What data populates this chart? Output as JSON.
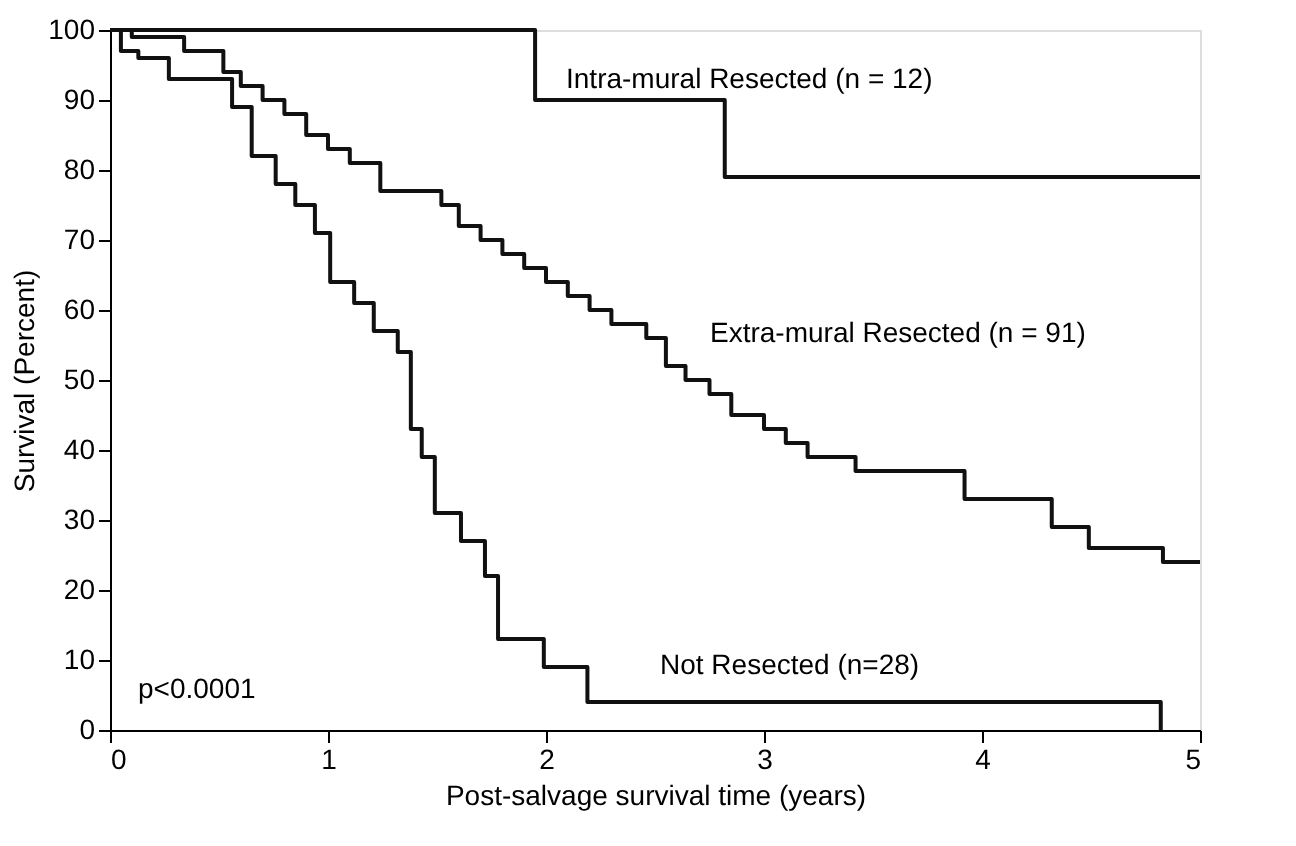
{
  "chart_data": {
    "type": "step",
    "xlabel": "Post-salvage survival time (years)",
    "ylabel": "Survival (Percent)",
    "xlim": [
      0,
      5
    ],
    "xticks": [
      0,
      1,
      2,
      3,
      4,
      5
    ],
    "ylim": [
      0,
      100
    ],
    "yticks": [
      0,
      10,
      20,
      30,
      40,
      50,
      60,
      70,
      80,
      90,
      100
    ],
    "grid": false,
    "marker": "none",
    "line_style": "solid",
    "series": [
      {
        "name": "Intra-mural Resected (n = 12)",
        "color": "#111111",
        "x": [
          0,
          1.95,
          2.82,
          5
        ],
        "values": [
          100,
          90,
          79,
          79
        ]
      },
      {
        "name": "Extra-mural Resected (n = 91)",
        "color": "#111111",
        "x": [
          0,
          0.1,
          0.34,
          0.52,
          0.6,
          0.7,
          0.8,
          0.9,
          1.0,
          1.1,
          1.24,
          1.52,
          1.6,
          1.7,
          1.8,
          1.9,
          2.0,
          2.1,
          2.2,
          2.3,
          2.46,
          2.55,
          2.64,
          2.75,
          2.85,
          3.0,
          3.1,
          3.2,
          3.42,
          3.92,
          4.32,
          4.49,
          4.83,
          5
        ],
        "values": [
          100,
          99,
          97,
          94,
          92,
          90,
          88,
          85,
          83,
          81,
          77,
          75,
          72,
          70,
          68,
          66,
          64,
          62,
          60,
          58,
          56,
          52,
          50,
          48,
          45,
          43,
          41,
          39,
          37,
          33,
          29,
          26,
          24,
          24
        ]
      },
      {
        "name": "Not Resected (n=28)",
        "color": "#111111",
        "x": [
          0,
          0.05,
          0.13,
          0.27,
          0.56,
          0.65,
          0.76,
          0.85,
          0.94,
          1.01,
          1.12,
          1.21,
          1.32,
          1.38,
          1.43,
          1.49,
          1.61,
          1.72,
          1.78,
          1.99,
          2.19,
          4.82
        ],
        "values": [
          100,
          97,
          96,
          93,
          89,
          82,
          78,
          75,
          71,
          64,
          61,
          57,
          54,
          43,
          39,
          31,
          27,
          22,
          13,
          9,
          4,
          0
        ]
      }
    ],
    "annotations": [
      "p<0.0001"
    ]
  }
}
